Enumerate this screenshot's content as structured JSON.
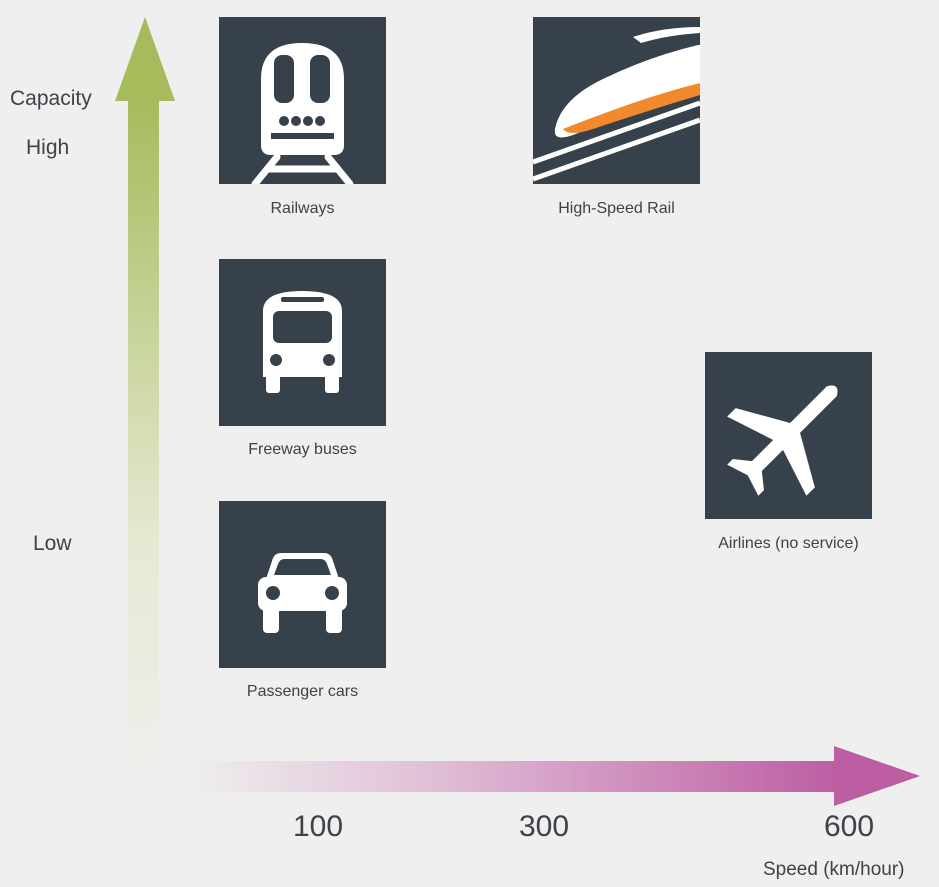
{
  "y_axis": {
    "label": "Capacity",
    "high_label": "High",
    "low_label": "Low",
    "color_top": "#a6bb5c"
  },
  "x_axis": {
    "ticks": [
      "100",
      "300",
      "600"
    ],
    "label": "Speed (km/hour)",
    "color_end": "#bd5ea3"
  },
  "modes": {
    "railways": {
      "label": "Railways",
      "icon": "train-icon"
    },
    "high_speed_rail": {
      "label": "High-Speed Rail",
      "icon": "bullet-train-icon"
    },
    "freeway_buses": {
      "label": "Freeway buses",
      "icon": "bus-icon"
    },
    "passenger_cars": {
      "label": "Passenger cars",
      "icon": "car-icon"
    },
    "airlines": {
      "label": "Airlines (no service)",
      "icon": "airplane-icon"
    }
  },
  "colors": {
    "tile_bg": "#37414b",
    "background": "#eeefee",
    "bullet_train_stripe": "#f08a2c"
  }
}
